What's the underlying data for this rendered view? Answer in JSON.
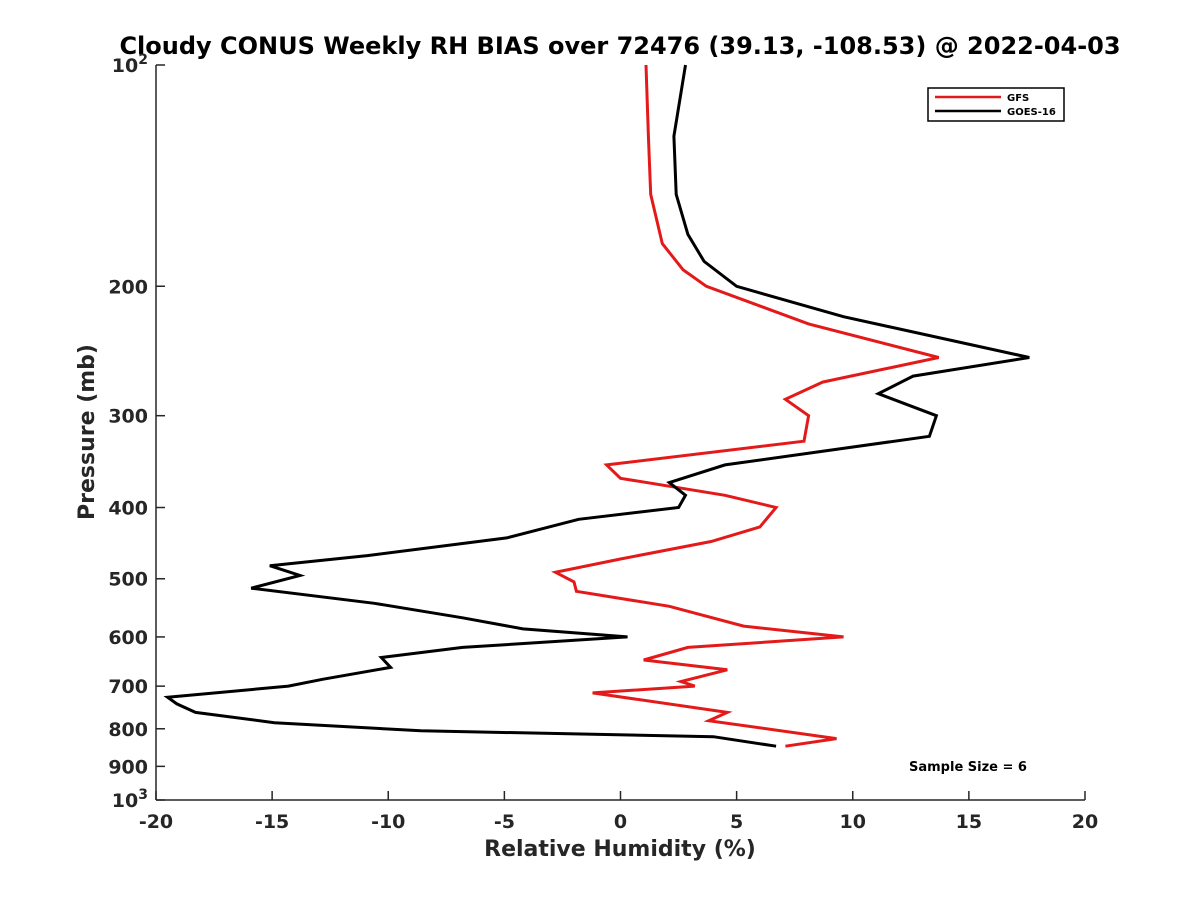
{
  "chart_data": {
    "type": "line",
    "title": "Cloudy CONUS Weekly RH BIAS over 72476 (39.13, -108.53) @ 2022-04-03",
    "xlabel": "Relative Humidity (%)",
    "ylabel": "Pressure (mb)",
    "xlim": [
      -20,
      20
    ],
    "ylim": [
      100,
      1000
    ],
    "y_scale": "log",
    "y_reversed": true,
    "x_ticks": [
      -20,
      -15,
      -10,
      -5,
      0,
      5,
      10,
      15,
      20
    ],
    "x_tick_labels": [
      "-20",
      "-15",
      "-10",
      "-5",
      "0",
      "5",
      "10",
      "15",
      "20"
    ],
    "y_ticks": [
      {
        "value": 100,
        "base": "10",
        "exp": "2"
      },
      {
        "value": 200,
        "label": "200"
      },
      {
        "value": 300,
        "label": "300"
      },
      {
        "value": 400,
        "label": "400"
      },
      {
        "value": 500,
        "label": "500"
      },
      {
        "value": 600,
        "label": "600"
      },
      {
        "value": 700,
        "label": "700"
      },
      {
        "value": 800,
        "label": "800"
      },
      {
        "value": 900,
        "label": "900"
      },
      {
        "value": 1000,
        "base": "10",
        "exp": "3"
      }
    ],
    "grid": false,
    "legend_position": "top-right",
    "annotation": "Sample Size = 6",
    "series": [
      {
        "name": "GFS",
        "color": "#e41a1a",
        "points": [
          [
            1.1,
            100
          ],
          [
            1.2,
            125
          ],
          [
            1.3,
            150
          ],
          [
            1.8,
            175
          ],
          [
            2.7,
            190
          ],
          [
            3.7,
            200
          ],
          [
            8.1,
            225
          ],
          [
            13.7,
            250
          ],
          [
            8.7,
            270
          ],
          [
            7.1,
            285
          ],
          [
            8.1,
            300
          ],
          [
            7.9,
            325
          ],
          [
            -0.6,
            350
          ],
          [
            0.0,
            365
          ],
          [
            4.5,
            385
          ],
          [
            6.7,
            400
          ],
          [
            6.0,
            425
          ],
          [
            3.9,
            445
          ],
          [
            0.0,
            470
          ],
          [
            -2.8,
            490
          ],
          [
            -2.0,
            505
          ],
          [
            -1.9,
            520
          ],
          [
            2.1,
            545
          ],
          [
            5.3,
            580
          ],
          [
            9.6,
            600
          ],
          [
            2.9,
            620
          ],
          [
            1.0,
            645
          ],
          [
            4.6,
            665
          ],
          [
            2.6,
            690
          ],
          [
            3.2,
            700
          ],
          [
            -1.2,
            715
          ],
          [
            4.6,
            760
          ],
          [
            3.8,
            780
          ],
          [
            9.3,
            825
          ],
          [
            7.1,
            845
          ]
        ]
      },
      {
        "name": "GOES-16",
        "color": "#000000",
        "points": [
          [
            2.8,
            100
          ],
          [
            2.3,
            125
          ],
          [
            2.4,
            150
          ],
          [
            2.9,
            170
          ],
          [
            3.6,
            185
          ],
          [
            5.0,
            200
          ],
          [
            9.6,
            220
          ],
          [
            17.6,
            250
          ],
          [
            12.6,
            265
          ],
          [
            11.1,
            280
          ],
          [
            13.6,
            300
          ],
          [
            13.3,
            320
          ],
          [
            4.5,
            350
          ],
          [
            2.1,
            370
          ],
          [
            2.8,
            385
          ],
          [
            2.5,
            400
          ],
          [
            -1.8,
            415
          ],
          [
            -4.9,
            440
          ],
          [
            -10.9,
            465
          ],
          [
            -15.1,
            480
          ],
          [
            -13.8,
            495
          ],
          [
            -15.9,
            515
          ],
          [
            -10.6,
            540
          ],
          [
            -6.8,
            565
          ],
          [
            -4.2,
            585
          ],
          [
            0.3,
            600
          ],
          [
            -6.8,
            620
          ],
          [
            -10.3,
            640
          ],
          [
            -9.9,
            660
          ],
          [
            -12.8,
            685
          ],
          [
            -14.3,
            700
          ],
          [
            -19.5,
            725
          ],
          [
            -19.1,
            740
          ],
          [
            -18.3,
            760
          ],
          [
            -14.9,
            785
          ],
          [
            -8.6,
            805
          ],
          [
            4.0,
            820
          ],
          [
            6.7,
            845
          ]
        ]
      }
    ]
  }
}
